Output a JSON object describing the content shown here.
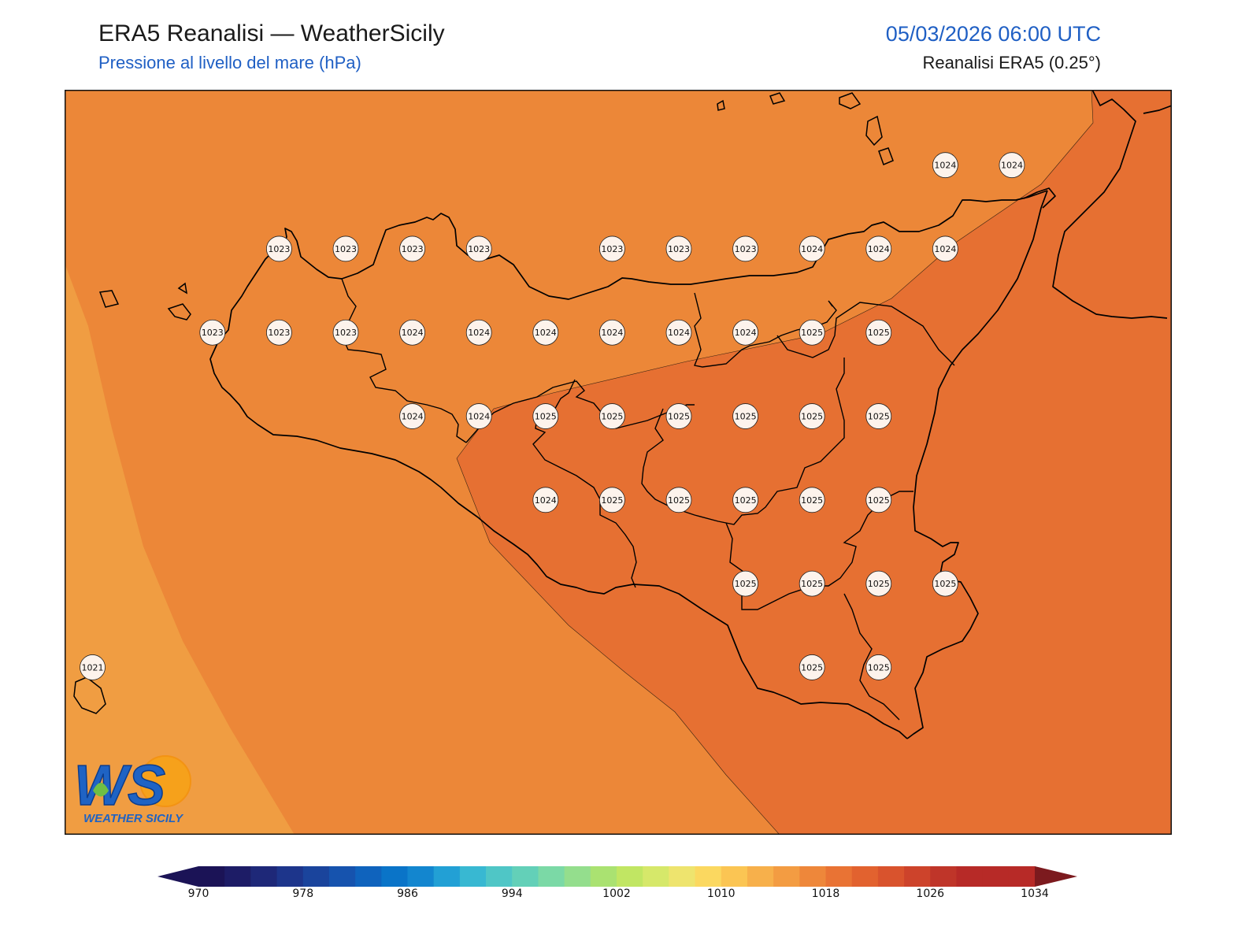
{
  "header": {
    "title": "ERA5 Reanalisi — WeatherSicily",
    "subtitle": "Pressione al livello del mare (hPa)",
    "datetime": "05/03/2026 06:00 UTC",
    "source": "Reanalisi ERA5 (0.25°)"
  },
  "logo": {
    "initials": "WS",
    "name": "WEATHER SICILY"
  },
  "colors": {
    "band_1020": "#f09d42",
    "band_1022": "#ec8738",
    "band_1024": "#e67032",
    "frame": "#111111",
    "coast": "#000000",
    "marker_fill": "#fdf3ec"
  },
  "colorbar": {
    "min": 970,
    "max": 1034,
    "step": 2,
    "ticks": [
      "970",
      "978",
      "986",
      "994",
      "1002",
      "1010",
      "1018",
      "1026",
      "1034"
    ],
    "colors": [
      "#1b1356",
      "#1d1c66",
      "#1e2878",
      "#1d358b",
      "#1a449c",
      "#1653ae",
      "#0f63bd",
      "#0a74c8",
      "#1386cf",
      "#22a0d5",
      "#38b8d2",
      "#4fc6c6",
      "#63d0b8",
      "#7bd9a6",
      "#94de8d",
      "#aae271",
      "#c1e663",
      "#d6e86a",
      "#eee46e",
      "#fbd860",
      "#fbc553",
      "#f7b04b",
      "#f39c42",
      "#ee873a",
      "#e97334",
      "#e2622f",
      "#d9532d",
      "#cd432b",
      "#bf3529",
      "#b72a27",
      "#7c1a1e"
    ]
  },
  "pressure_points": [
    {
      "lon": 12.4,
      "lat": 38.3,
      "value": 1023
    },
    {
      "lon": 12.9,
      "lat": 38.3,
      "value": 1023
    },
    {
      "lon": 13.4,
      "lat": 38.3,
      "value": 1023
    },
    {
      "lon": 13.9,
      "lat": 38.3,
      "value": 1023
    },
    {
      "lon": 14.9,
      "lat": 38.3,
      "value": 1023
    },
    {
      "lon": 15.4,
      "lat": 38.3,
      "value": 1023
    },
    {
      "lon": 15.9,
      "lat": 38.3,
      "value": 1023
    },
    {
      "lon": 16.4,
      "lat": 38.3,
      "value": 1024
    },
    {
      "lon": 16.9,
      "lat": 38.3,
      "value": 1024
    },
    {
      "lon": 17.4,
      "lat": 38.3,
      "value": 1024
    },
    {
      "lon": 17.4,
      "lat": 38.8,
      "value": 1024
    },
    {
      "lon": 17.9,
      "lat": 38.8,
      "value": 1024
    },
    {
      "lon": 11.9,
      "lat": 37.8,
      "value": 1023
    },
    {
      "lon": 12.4,
      "lat": 37.8,
      "value": 1023
    },
    {
      "lon": 12.9,
      "lat": 37.8,
      "value": 1023
    },
    {
      "lon": 13.4,
      "lat": 37.8,
      "value": 1024
    },
    {
      "lon": 13.9,
      "lat": 37.8,
      "value": 1024
    },
    {
      "lon": 14.4,
      "lat": 37.8,
      "value": 1024
    },
    {
      "lon": 14.9,
      "lat": 37.8,
      "value": 1024
    },
    {
      "lon": 15.4,
      "lat": 37.8,
      "value": 1024
    },
    {
      "lon": 15.9,
      "lat": 37.8,
      "value": 1024
    },
    {
      "lon": 16.4,
      "lat": 37.8,
      "value": 1025
    },
    {
      "lon": 16.9,
      "lat": 37.8,
      "value": 1025
    },
    {
      "lon": 13.4,
      "lat": 37.3,
      "value": 1024
    },
    {
      "lon": 13.9,
      "lat": 37.3,
      "value": 1024
    },
    {
      "lon": 14.4,
      "lat": 37.3,
      "value": 1025
    },
    {
      "lon": 14.9,
      "lat": 37.3,
      "value": 1025
    },
    {
      "lon": 15.4,
      "lat": 37.3,
      "value": 1025
    },
    {
      "lon": 15.9,
      "lat": 37.3,
      "value": 1025
    },
    {
      "lon": 16.4,
      "lat": 37.3,
      "value": 1025
    },
    {
      "lon": 16.9,
      "lat": 37.3,
      "value": 1025
    },
    {
      "lon": 14.4,
      "lat": 36.8,
      "value": 1024
    },
    {
      "lon": 14.9,
      "lat": 36.8,
      "value": 1025
    },
    {
      "lon": 15.4,
      "lat": 36.8,
      "value": 1025
    },
    {
      "lon": 15.9,
      "lat": 36.8,
      "value": 1025
    },
    {
      "lon": 16.4,
      "lat": 36.8,
      "value": 1025
    },
    {
      "lon": 16.9,
      "lat": 36.8,
      "value": 1025
    },
    {
      "lon": 15.9,
      "lat": 36.3,
      "value": 1025
    },
    {
      "lon": 16.4,
      "lat": 36.3,
      "value": 1025
    },
    {
      "lon": 16.9,
      "lat": 36.3,
      "value": 1025
    },
    {
      "lon": 17.4,
      "lat": 36.3,
      "value": 1025
    },
    {
      "lon": 16.4,
      "lat": 35.8,
      "value": 1025
    },
    {
      "lon": 16.9,
      "lat": 35.8,
      "value": 1025
    },
    {
      "lon": 11.0,
      "lat": 35.8,
      "value": 1021
    }
  ],
  "map_extent": {
    "lon_min": 10.79,
    "lon_max": 19.1,
    "lat_min": 34.8,
    "lat_max": 39.25
  }
}
